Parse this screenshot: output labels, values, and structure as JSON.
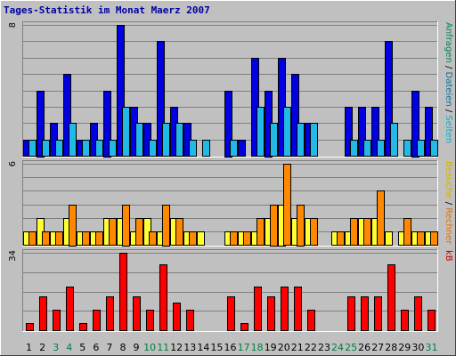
{
  "chart_data": {
    "type": "bar",
    "title": "Tages-Statistik im Monat Maerz 2007",
    "categories": [
      "1",
      "2",
      "3",
      "4",
      "5",
      "6",
      "7",
      "8",
      "9",
      "10",
      "11",
      "12",
      "13",
      "14",
      "15",
      "16",
      "17",
      "18",
      "19",
      "20",
      "21",
      "22",
      "23",
      "24",
      "25",
      "26",
      "27",
      "28",
      "29",
      "30",
      "31"
    ],
    "weekend_days": [
      "3",
      "4",
      "10",
      "11",
      "17",
      "18",
      "24",
      "25",
      "31"
    ],
    "colors": {
      "anfragen": "#0000e0",
      "dateien": "#22b8e8",
      "seiten": "#ffff33",
      "besuche": "#ffcc00",
      "rechner": "#ff8800",
      "kb": "#ff0000",
      "weekday_label": "#000000",
      "weekend_label": "#008040",
      "title": "#0000a0",
      "plot_bg": "#c0c0c0"
    },
    "panels": [
      {
        "id": "requests",
        "ytick": "8",
        "ymax": 8,
        "series": [
          {
            "key": "anfragen",
            "values": [
              1,
              4,
              2,
              5,
              1,
              2,
              4,
              8,
              3,
              2,
              7,
              3,
              2,
              0,
              0,
              4,
              1,
              6,
              4,
              6,
              5,
              2,
              0,
              0,
              3,
              3,
              3,
              7,
              0,
              4,
              3
            ]
          },
          {
            "key": "dateien",
            "values": [
              1,
              1,
              1,
              2,
              1,
              1,
              1,
              3,
              2,
              1,
              2,
              2,
              1,
              1,
              0,
              1,
              0,
              3,
              2,
              3,
              2,
              2,
              0,
              0,
              1,
              1,
              1,
              2,
              1,
              1,
              1
            ]
          }
        ],
        "side_label": [
          {
            "text": "Anfragen",
            "color": "#008060"
          },
          {
            "text": " / ",
            "color": "#000000"
          },
          {
            "text": "Dateien",
            "color": "#0070a0"
          },
          {
            "text": " / ",
            "color": "#000000"
          },
          {
            "text": "Seiten",
            "color": "#00b0d0"
          }
        ]
      },
      {
        "id": "visits",
        "ytick": "6",
        "ymax": 6,
        "series": [
          {
            "key": "seiten",
            "values": [
              1,
              2,
              1,
              2,
              1,
              1,
              2,
              2,
              1,
              2,
              1,
              2,
              1,
              1,
              0,
              1,
              1,
              1,
              2,
              3,
              2,
              2,
              0,
              1,
              1,
              2,
              2,
              1,
              1,
              1,
              1
            ]
          },
          {
            "key": "besuche",
            "values": [
              0,
              0,
              0,
              0,
              0,
              0,
              0,
              0,
              0,
              0,
              0,
              0,
              0,
              0,
              0,
              0,
              0,
              0,
              0,
              0,
              0,
              0,
              0,
              0,
              0,
              0,
              0,
              0,
              0,
              0,
              0
            ]
          },
          {
            "key": "rechner",
            "values": [
              1,
              1,
              1,
              3,
              1,
              1,
              2,
              3,
              2,
              1,
              3,
              2,
              1,
              0,
              0,
              1,
              1,
              2,
              3,
              6,
              3,
              2,
              0,
              1,
              2,
              2,
              4,
              0,
              2,
              1,
              1
            ]
          }
        ],
        "side_label": [
          {
            "text": "Besuche",
            "color": "#d8b000"
          },
          {
            "text": " / ",
            "color": "#000000"
          },
          {
            "text": "Rechner",
            "color": "#e07000"
          }
        ]
      },
      {
        "id": "kb",
        "ytick": "34",
        "ymax": 34,
        "series": [
          {
            "key": "kb",
            "values": [
              3,
              15,
              9,
              19,
              3,
              9,
              15,
              34,
              15,
              9,
              29,
              12,
              9,
              0,
              0,
              15,
              3,
              19,
              15,
              19,
              19,
              9,
              0,
              0,
              15,
              15,
              15,
              29,
              9,
              15,
              9
            ]
          }
        ],
        "side_label": [
          {
            "text": "kB",
            "color": "#c00000"
          }
        ]
      }
    ]
  }
}
